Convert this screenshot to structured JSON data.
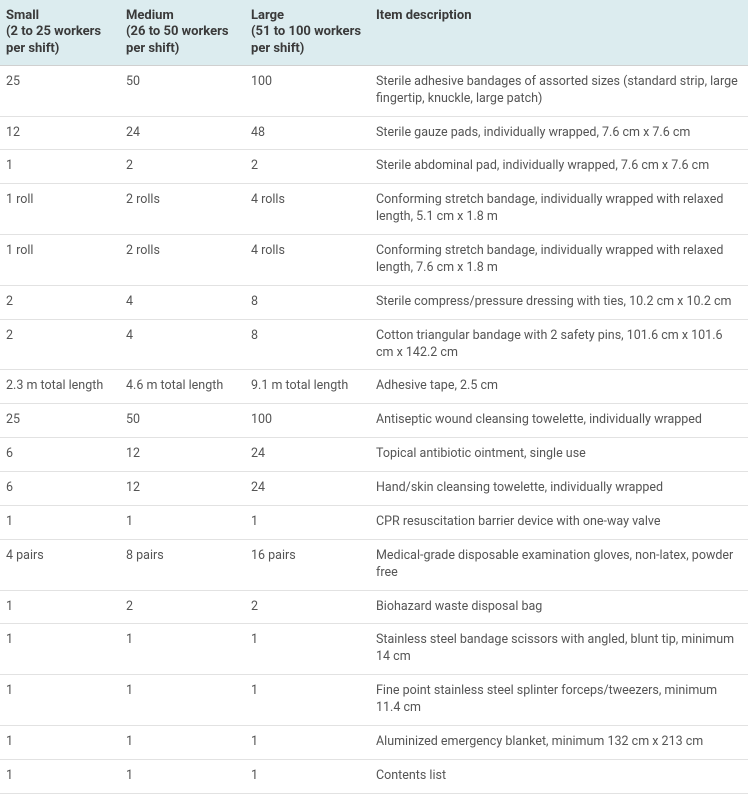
{
  "table": {
    "columns": [
      {
        "key": "small",
        "label": "Small\n(2 to 25 workers per shift)"
      },
      {
        "key": "medium",
        "label": "Medium\n(26 to 50 workers per shift)"
      },
      {
        "key": "large",
        "label": "Large\n(51 to 100 workers per shift)"
      },
      {
        "key": "desc",
        "label": "Item description"
      }
    ],
    "header_bg": "#dcecef",
    "border_color": "#e2e2e2",
    "rows": [
      {
        "small": "25",
        "medium": "50",
        "large": "100",
        "desc": "Sterile adhesive bandages of assorted sizes (standard strip, large fingertip, knuckle, large patch)"
      },
      {
        "small": "12",
        "medium": "24",
        "large": "48",
        "desc": "Sterile gauze pads, individually wrapped, 7.6 cm x 7.6 cm"
      },
      {
        "small": "1",
        "medium": "2",
        "large": "2",
        "desc": "Sterile abdominal pad, individually wrapped, 7.6 cm x 7.6 cm"
      },
      {
        "small": "1 roll",
        "medium": "2 rolls",
        "large": "4 rolls",
        "desc": "Conforming stretch bandage, individually wrapped with relaxed length, 5.1 cm x 1.8 m"
      },
      {
        "small": "1 roll",
        "medium": "2 rolls",
        "large": "4 rolls",
        "desc": "Conforming stretch bandage, individually wrapped with relaxed length, 7.6 cm x 1.8 m"
      },
      {
        "small": "2",
        "medium": "4",
        "large": "8",
        "desc": "Sterile compress/pressure dressing with ties, 10.2 cm x 10.2 cm"
      },
      {
        "small": "2",
        "medium": "4",
        "large": "8",
        "desc": "Cotton triangular bandage with 2 safety pins, 101.6 cm x 101.6 cm x 142.2 cm"
      },
      {
        "small": "2.3 m total length",
        "medium": "4.6 m total length",
        "large": "9.1 m total length",
        "desc": "Adhesive tape, 2.5 cm"
      },
      {
        "small": "25",
        "medium": "50",
        "large": "100",
        "desc": "Antiseptic wound cleansing towelette, individually wrapped"
      },
      {
        "small": "6",
        "medium": "12",
        "large": "24",
        "desc": "Topical antibiotic ointment, single use"
      },
      {
        "small": "6",
        "medium": "12",
        "large": "24",
        "desc": "Hand/skin cleansing towelette, individually wrapped"
      },
      {
        "small": "1",
        "medium": "1",
        "large": "1",
        "desc": "CPR resuscitation barrier device with one-way valve"
      },
      {
        "small": "4 pairs",
        "medium": "8 pairs",
        "large": "16 pairs",
        "desc": "Medical-grade disposable examination gloves, non-latex, powder free"
      },
      {
        "small": "1",
        "medium": "2",
        "large": "2",
        "desc": "Biohazard waste disposal bag"
      },
      {
        "small": "1",
        "medium": "1",
        "large": "1",
        "desc": "Stainless steel bandage scissors with angled, blunt tip, minimum 14 cm"
      },
      {
        "small": "1",
        "medium": "1",
        "large": "1",
        "desc": "Fine point stainless steel splinter forceps/tweezers, minimum 11.4 cm"
      },
      {
        "small": "1",
        "medium": "1",
        "large": "1",
        "desc": "Aluminized emergency blanket, minimum 132 cm x 213 cm"
      },
      {
        "small": "1",
        "medium": "1",
        "large": "1",
        "desc": "Contents list"
      }
    ]
  }
}
